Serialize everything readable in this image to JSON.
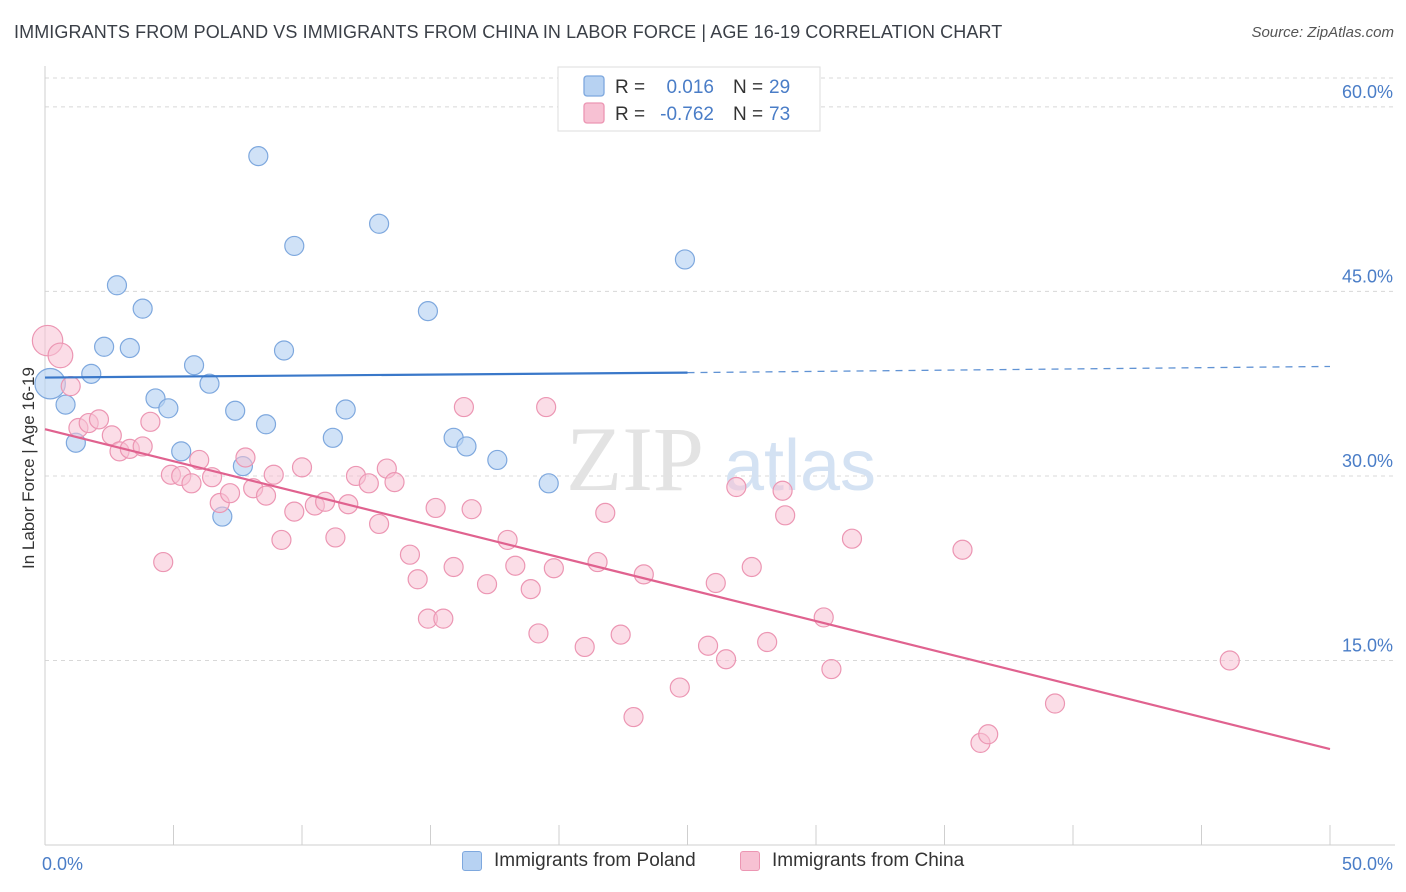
{
  "title": "IMMIGRANTS FROM POLAND VS IMMIGRANTS FROM CHINA IN LABOR FORCE | AGE 16-19 CORRELATION CHART",
  "source": "Source: ZipAtlas.com",
  "watermark": {
    "zip": "ZIP",
    "atlas": "atlas"
  },
  "colors": {
    "poland_fill": "#b7d2f2",
    "poland_stroke": "#7ea8de",
    "poland_line": "#3a78c9",
    "china_fill": "#f7c1d3",
    "china_stroke": "#ec96b3",
    "china_line": "#e0628f",
    "axis_label": "#4a7dc7",
    "grid": "#d8d8d8"
  },
  "legend_top": [
    {
      "r_label": "R =",
      "r_value": "0.016",
      "n_label": "N =",
      "n_value": "29"
    },
    {
      "r_label": "R =",
      "r_value": "-0.762",
      "n_label": "N =",
      "n_value": "73"
    }
  ],
  "legend_bottom": [
    "Immigrants from Poland",
    "Immigrants from China"
  ],
  "chart_data": {
    "type": "scatter",
    "title": "IMMIGRANTS FROM POLAND VS IMMIGRANTS FROM CHINA IN LABOR FORCE | AGE 16-19 CORRELATION CHART",
    "xlabel": "",
    "ylabel": "In Labor Force | Age 16-19",
    "xlim": [
      0,
      50
    ],
    "ylim": [
      0,
      63
    ],
    "x_tick_labels": [
      "0.0%",
      "50.0%"
    ],
    "y_ticks": [
      15,
      30,
      45,
      60
    ],
    "y_tick_labels": [
      "15.0%",
      "30.0%",
      "45.0%",
      "60.0%"
    ],
    "grid": true,
    "series": [
      {
        "name": "Immigrants from Poland",
        "r": 0.016,
        "n": 29,
        "trend": {
          "x0": 0,
          "y0": 38.0,
          "x1": 25,
          "y1": 38.4,
          "dash_to_x": 50,
          "dash_to_y": 38.9
        },
        "points": [
          [
            0.2,
            37.5,
            1.6
          ],
          [
            0.8,
            35.8,
            1
          ],
          [
            1.2,
            32.7,
            1
          ],
          [
            1.8,
            38.3,
            1
          ],
          [
            2.3,
            40.5,
            1
          ],
          [
            2.8,
            45.5,
            1
          ],
          [
            3.3,
            40.4,
            1
          ],
          [
            3.8,
            43.6,
            1
          ],
          [
            4.3,
            36.3,
            1
          ],
          [
            4.8,
            35.5,
            1
          ],
          [
            5.3,
            32.0,
            1
          ],
          [
            5.8,
            39.0,
            1
          ],
          [
            6.4,
            37.5,
            1
          ],
          [
            6.9,
            26.7,
            1
          ],
          [
            7.4,
            35.3,
            1
          ],
          [
            7.7,
            30.8,
            1
          ],
          [
            8.3,
            56.0,
            1
          ],
          [
            8.6,
            34.2,
            1
          ],
          [
            9.3,
            40.2,
            1
          ],
          [
            9.7,
            48.7,
            1
          ],
          [
            11.2,
            33.1,
            1
          ],
          [
            11.7,
            35.4,
            1
          ],
          [
            13.0,
            50.5,
            1
          ],
          [
            14.9,
            43.4,
            1
          ],
          [
            15.9,
            33.1,
            1
          ],
          [
            16.4,
            32.4,
            1
          ],
          [
            17.6,
            31.3,
            1
          ],
          [
            19.6,
            29.4,
            1
          ],
          [
            24.9,
            47.6,
            1
          ]
        ]
      },
      {
        "name": "Immigrants from China",
        "r": -0.762,
        "n": 73,
        "trend": {
          "x0": 0,
          "y0": 33.8,
          "x1": 50,
          "y1": 7.8
        },
        "points": [
          [
            0.1,
            41.0,
            1.6
          ],
          [
            0.6,
            39.8,
            1.3
          ],
          [
            1.0,
            37.3,
            1
          ],
          [
            1.3,
            33.9,
            1
          ],
          [
            1.7,
            34.3,
            1
          ],
          [
            2.1,
            34.6,
            1
          ],
          [
            2.6,
            33.3,
            1
          ],
          [
            2.9,
            32.0,
            1
          ],
          [
            3.3,
            32.2,
            1
          ],
          [
            3.8,
            32.4,
            1
          ],
          [
            4.1,
            34.4,
            1
          ],
          [
            4.6,
            23.0,
            1
          ],
          [
            4.9,
            30.1,
            1
          ],
          [
            5.3,
            30.0,
            1
          ],
          [
            5.7,
            29.4,
            1
          ],
          [
            6.0,
            31.3,
            1
          ],
          [
            6.5,
            29.9,
            1
          ],
          [
            6.8,
            27.8,
            1
          ],
          [
            7.2,
            28.6,
            1
          ],
          [
            7.8,
            31.5,
            1
          ],
          [
            8.1,
            29.0,
            1
          ],
          [
            8.6,
            28.4,
            1
          ],
          [
            8.9,
            30.1,
            1
          ],
          [
            9.2,
            24.8,
            1
          ],
          [
            9.7,
            27.1,
            1
          ],
          [
            10.0,
            30.7,
            1
          ],
          [
            10.5,
            27.6,
            1
          ],
          [
            10.9,
            27.9,
            1
          ],
          [
            11.3,
            25.0,
            1
          ],
          [
            11.8,
            27.7,
            1
          ],
          [
            12.1,
            30.0,
            1
          ],
          [
            12.6,
            29.4,
            1
          ],
          [
            13.0,
            26.1,
            1
          ],
          [
            13.3,
            30.6,
            1
          ],
          [
            13.6,
            29.5,
            1
          ],
          [
            14.2,
            23.6,
            1
          ],
          [
            14.5,
            21.6,
            1
          ],
          [
            14.9,
            18.4,
            1
          ],
          [
            15.2,
            27.4,
            1
          ],
          [
            15.5,
            18.4,
            1
          ],
          [
            15.9,
            22.6,
            1
          ],
          [
            16.3,
            35.6,
            1
          ],
          [
            16.6,
            27.3,
            1
          ],
          [
            17.2,
            21.2,
            1
          ],
          [
            18.0,
            24.8,
            1
          ],
          [
            18.3,
            22.7,
            1
          ],
          [
            18.9,
            20.8,
            1
          ],
          [
            19.2,
            17.2,
            1
          ],
          [
            19.5,
            35.6,
            1
          ],
          [
            19.8,
            22.5,
            1
          ],
          [
            21.0,
            16.1,
            1
          ],
          [
            21.5,
            23.0,
            1
          ],
          [
            21.8,
            27.0,
            1
          ],
          [
            22.4,
            17.1,
            1
          ],
          [
            22.9,
            10.4,
            1
          ],
          [
            23.3,
            22.0,
            1
          ],
          [
            24.7,
            12.8,
            1
          ],
          [
            25.8,
            16.2,
            1
          ],
          [
            26.1,
            21.3,
            1
          ],
          [
            26.5,
            15.1,
            1
          ],
          [
            26.9,
            29.1,
            1
          ],
          [
            27.5,
            22.6,
            1
          ],
          [
            28.1,
            16.5,
            1
          ],
          [
            28.7,
            28.8,
            1
          ],
          [
            28.8,
            26.8,
            1
          ],
          [
            30.3,
            18.5,
            1
          ],
          [
            30.6,
            14.3,
            1
          ],
          [
            31.4,
            24.9,
            1
          ],
          [
            35.7,
            24.0,
            1
          ],
          [
            36.4,
            8.3,
            1
          ],
          [
            36.7,
            9.0,
            1
          ],
          [
            39.3,
            11.5,
            1
          ],
          [
            46.1,
            15.0,
            1
          ]
        ]
      }
    ]
  }
}
